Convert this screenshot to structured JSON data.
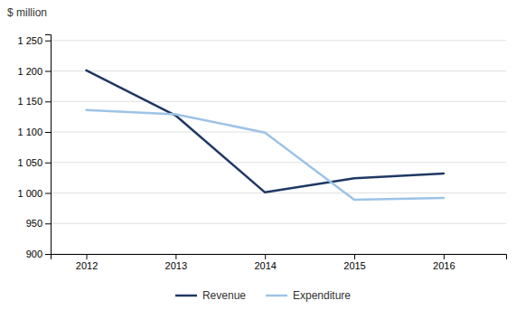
{
  "chart_data": {
    "type": "line",
    "y_label": "$ million",
    "x": [
      2012,
      2013,
      2014,
      2015,
      2016
    ],
    "series": [
      {
        "name": "Revenue",
        "color": "#1F3864",
        "values": [
          1201,
          1127,
          1001,
          1024,
          1032
        ]
      },
      {
        "name": "Expenditure",
        "color": "#9DC3E6",
        "values": [
          1136,
          1129,
          1099,
          989,
          992
        ]
      }
    ],
    "xlim": [
      2011.6,
      2016.7
    ],
    "xticks": [
      2012,
      2013,
      2014,
      2015,
      2016
    ],
    "ylim": [
      900,
      1260
    ],
    "yticks": [
      900,
      950,
      {
        "value": 1000,
        "label": "1 000"
      },
      {
        "value": 1050,
        "label": "1 050"
      },
      {
        "value": 1100,
        "label": "1 100"
      },
      {
        "value": 1150,
        "label": "1 150"
      },
      {
        "value": 1200,
        "label": "1 200"
      },
      {
        "value": 1250,
        "label": "1 250"
      }
    ],
    "grid": true,
    "legend": "bottom"
  }
}
